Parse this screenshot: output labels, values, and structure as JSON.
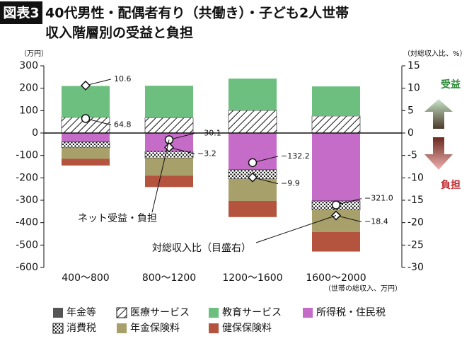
{
  "chart_data": {
    "type": "stacked-bar",
    "badge": "図表3",
    "title": "40代男性・配偶者有り（共働き）・子ども2人世帯",
    "subtitle": "収入階層別の受益と負担",
    "y_unit": "（万円）",
    "y2_unit": "（対総収入比、%）",
    "x_note": "（世帯の総収入、万円）",
    "benefit_label": "受益",
    "burden_label": "負担",
    "categories": [
      "400～800",
      "800～1200",
      "1200～1600",
      "1600～2000"
    ],
    "series": [
      {
        "name": "年金等",
        "color": "#555555",
        "values": [
          0,
          0,
          0,
          0
        ]
      },
      {
        "name": "医療サービス",
        "color": "#ffffff",
        "pattern": "hatch",
        "values": [
          70,
          68,
          101,
          76
        ]
      },
      {
        "name": "教育サービス",
        "color": "#6cbf7e",
        "values": [
          140,
          143,
          142,
          132
        ]
      },
      {
        "name": "所得税・住民税",
        "color": "#c56cc8",
        "values": [
          -40,
          -82,
          -164,
          -303
        ]
      },
      {
        "name": "消費税",
        "color": "#ffffff",
        "pattern": "dots",
        "values": [
          -25,
          -30,
          -41,
          -41
        ]
      },
      {
        "name": "年金保険料",
        "color": "#a8a06a",
        "values": [
          -50,
          -78,
          -98,
          -98
        ]
      },
      {
        "name": "健保保険料",
        "color": "#b4533e",
        "values": [
          -30,
          -51,
          -72,
          -87
        ]
      }
    ],
    "net": {
      "name": "ネット受益・負担",
      "marker": "circle",
      "values": [
        64.8,
        -30.1,
        -132.2,
        -321.0
      ],
      "value_labels": [
        "64.8",
        "−30.1",
        "−132.2",
        "−321.0"
      ]
    },
    "ratio": {
      "name": "対総収入比（目盛右）",
      "marker": "diamond",
      "axis": "y2",
      "values": [
        10.6,
        -3.2,
        -9.9,
        -18.4
      ],
      "value_labels": [
        "10.6",
        "−3.2",
        "−9.9",
        "−18.4"
      ]
    },
    "ylim": [
      -600,
      300
    ],
    "yticks": [
      -600,
      -500,
      -400,
      -300,
      -200,
      -100,
      0,
      100,
      200,
      300
    ],
    "y2lim": [
      -30,
      15
    ],
    "y2ticks": [
      -30,
      -25,
      -20,
      -15,
      -10,
      -5,
      0,
      5,
      10,
      15
    ]
  }
}
